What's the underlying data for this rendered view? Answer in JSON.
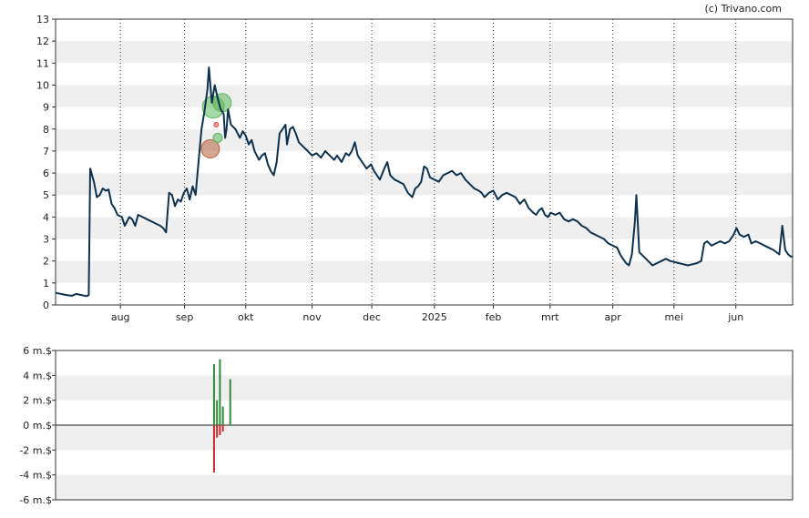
{
  "credit": "(c) Trivano.com",
  "chart_data": [
    {
      "type": "line",
      "title": "",
      "ylim": [
        0,
        13
      ],
      "y_ticks": [
        "0",
        "1",
        "2",
        "3",
        "4",
        "5",
        "6",
        "7",
        "8",
        "9",
        "10",
        "11",
        "12",
        "13"
      ],
      "x_ticks": [
        {
          "label": "aug",
          "t": 0.088
        },
        {
          "label": "sep",
          "t": 0.175
        },
        {
          "label": "okt",
          "t": 0.258
        },
        {
          "label": "nov",
          "t": 0.348
        },
        {
          "label": "dec",
          "t": 0.429
        },
        {
          "label": "2025",
          "t": 0.514
        },
        {
          "label": "feb",
          "t": 0.594
        },
        {
          "label": "mrt",
          "t": 0.671
        },
        {
          "label": "apr",
          "t": 0.756
        },
        {
          "label": "mei",
          "t": 0.839
        },
        {
          "label": "jun",
          "t": 0.923
        }
      ],
      "grid": "horizontal bands, dotted vertical month lines",
      "line_color": "#0d3250",
      "series": [
        {
          "values": [
            [
              0.0,
              0.55
            ],
            [
              0.015,
              0.45
            ],
            [
              0.022,
              0.42
            ],
            [
              0.028,
              0.5
            ],
            [
              0.035,
              0.45
            ],
            [
              0.042,
              0.4
            ],
            [
              0.045,
              0.45
            ],
            [
              0.047,
              6.2
            ],
            [
              0.052,
              5.6
            ],
            [
              0.056,
              4.9
            ],
            [
              0.06,
              5.0
            ],
            [
              0.064,
              5.3
            ],
            [
              0.068,
              5.2
            ],
            [
              0.072,
              5.25
            ],
            [
              0.076,
              4.6
            ],
            [
              0.08,
              4.4
            ],
            [
              0.084,
              4.1
            ],
            [
              0.09,
              4.0
            ],
            [
              0.094,
              3.6
            ],
            [
              0.1,
              4.0
            ],
            [
              0.104,
              3.9
            ],
            [
              0.108,
              3.6
            ],
            [
              0.112,
              4.1
            ],
            [
              0.118,
              4.0
            ],
            [
              0.124,
              3.9
            ],
            [
              0.13,
              3.8
            ],
            [
              0.136,
              3.7
            ],
            [
              0.142,
              3.6
            ],
            [
              0.146,
              3.5
            ],
            [
              0.15,
              3.3
            ],
            [
              0.154,
              5.1
            ],
            [
              0.158,
              5.0
            ],
            [
              0.162,
              4.5
            ],
            [
              0.166,
              4.8
            ],
            [
              0.17,
              4.7
            ],
            [
              0.174,
              5.1
            ],
            [
              0.178,
              5.3
            ],
            [
              0.182,
              4.8
            ],
            [
              0.186,
              5.4
            ],
            [
              0.19,
              5.0
            ],
            [
              0.194,
              6.5
            ],
            [
              0.198,
              8.0
            ],
            [
              0.202,
              8.8
            ],
            [
              0.206,
              9.8
            ],
            [
              0.208,
              10.8
            ],
            [
              0.212,
              9.2
            ],
            [
              0.216,
              10.0
            ],
            [
              0.22,
              9.4
            ],
            [
              0.224,
              8.9
            ],
            [
              0.228,
              8.7
            ],
            [
              0.23,
              7.6
            ],
            [
              0.232,
              8.0
            ],
            [
              0.234,
              8.9
            ],
            [
              0.238,
              8.2
            ],
            [
              0.244,
              8.0
            ],
            [
              0.25,
              7.6
            ],
            [
              0.254,
              7.9
            ],
            [
              0.258,
              7.7
            ],
            [
              0.262,
              7.3
            ],
            [
              0.266,
              7.5
            ],
            [
              0.27,
              7.0
            ],
            [
              0.276,
              6.6
            ],
            [
              0.28,
              6.8
            ],
            [
              0.284,
              6.9
            ],
            [
              0.288,
              6.4
            ],
            [
              0.292,
              6.1
            ],
            [
              0.296,
              5.9
            ],
            [
              0.3,
              6.5
            ],
            [
              0.304,
              7.8
            ],
            [
              0.308,
              8.0
            ],
            [
              0.312,
              8.2
            ],
            [
              0.314,
              7.3
            ],
            [
              0.318,
              8.0
            ],
            [
              0.322,
              8.1
            ],
            [
              0.326,
              7.8
            ],
            [
              0.33,
              7.4
            ],
            [
              0.336,
              7.2
            ],
            [
              0.342,
              7.0
            ],
            [
              0.348,
              6.8
            ],
            [
              0.354,
              6.9
            ],
            [
              0.36,
              6.7
            ],
            [
              0.366,
              7.0
            ],
            [
              0.372,
              6.8
            ],
            [
              0.378,
              6.6
            ],
            [
              0.382,
              6.8
            ],
            [
              0.388,
              6.5
            ],
            [
              0.394,
              6.9
            ],
            [
              0.398,
              6.8
            ],
            [
              0.402,
              7.0
            ],
            [
              0.406,
              7.4
            ],
            [
              0.41,
              6.8
            ],
            [
              0.416,
              6.5
            ],
            [
              0.422,
              6.2
            ],
            [
              0.428,
              6.4
            ],
            [
              0.432,
              6.1
            ],
            [
              0.436,
              5.9
            ],
            [
              0.44,
              5.7
            ],
            [
              0.446,
              6.2
            ],
            [
              0.45,
              6.5
            ],
            [
              0.454,
              5.9
            ],
            [
              0.46,
              5.7
            ],
            [
              0.466,
              5.6
            ],
            [
              0.472,
              5.5
            ],
            [
              0.478,
              5.1
            ],
            [
              0.484,
              4.9
            ],
            [
              0.488,
              5.3
            ],
            [
              0.492,
              5.4
            ],
            [
              0.496,
              5.6
            ],
            [
              0.5,
              6.3
            ],
            [
              0.504,
              6.2
            ],
            [
              0.508,
              5.8
            ],
            [
              0.514,
              5.7
            ],
            [
              0.52,
              5.6
            ],
            [
              0.526,
              5.9
            ],
            [
              0.532,
              6.0
            ],
            [
              0.538,
              6.1
            ],
            [
              0.544,
              5.9
            ],
            [
              0.55,
              6.0
            ],
            [
              0.556,
              5.7
            ],
            [
              0.562,
              5.5
            ],
            [
              0.568,
              5.3
            ],
            [
              0.574,
              5.2
            ],
            [
              0.578,
              5.1
            ],
            [
              0.582,
              4.9
            ],
            [
              0.588,
              5.1
            ],
            [
              0.594,
              5.2
            ],
            [
              0.6,
              4.8
            ],
            [
              0.606,
              5.0
            ],
            [
              0.612,
              5.1
            ],
            [
              0.618,
              5.0
            ],
            [
              0.624,
              4.9
            ],
            [
              0.63,
              4.6
            ],
            [
              0.636,
              4.8
            ],
            [
              0.642,
              4.4
            ],
            [
              0.648,
              4.2
            ],
            [
              0.652,
              4.1
            ],
            [
              0.656,
              4.3
            ],
            [
              0.66,
              4.4
            ],
            [
              0.664,
              4.1
            ],
            [
              0.668,
              4.0
            ],
            [
              0.672,
              4.2
            ],
            [
              0.678,
              4.1
            ],
            [
              0.684,
              4.2
            ],
            [
              0.69,
              3.9
            ],
            [
              0.696,
              3.8
            ],
            [
              0.702,
              3.9
            ],
            [
              0.708,
              3.8
            ],
            [
              0.714,
              3.6
            ],
            [
              0.72,
              3.5
            ],
            [
              0.726,
              3.3
            ],
            [
              0.732,
              3.2
            ],
            [
              0.738,
              3.1
            ],
            [
              0.744,
              3.0
            ],
            [
              0.75,
              2.8
            ],
            [
              0.756,
              2.7
            ],
            [
              0.762,
              2.6
            ],
            [
              0.766,
              2.3
            ],
            [
              0.77,
              2.1
            ],
            [
              0.774,
              1.9
            ],
            [
              0.778,
              1.8
            ],
            [
              0.782,
              2.3
            ],
            [
              0.786,
              3.8
            ],
            [
              0.788,
              5.0
            ],
            [
              0.792,
              2.4
            ],
            [
              0.798,
              2.2
            ],
            [
              0.804,
              2.0
            ],
            [
              0.81,
              1.8
            ],
            [
              0.816,
              1.9
            ],
            [
              0.822,
              2.0
            ],
            [
              0.828,
              2.1
            ],
            [
              0.834,
              2.0
            ],
            [
              0.84,
              1.95
            ],
            [
              0.846,
              1.9
            ],
            [
              0.852,
              1.85
            ],
            [
              0.858,
              1.8
            ],
            [
              0.864,
              1.85
            ],
            [
              0.87,
              1.9
            ],
            [
              0.876,
              2.0
            ],
            [
              0.88,
              2.8
            ],
            [
              0.884,
              2.9
            ],
            [
              0.89,
              2.7
            ],
            [
              0.896,
              2.8
            ],
            [
              0.902,
              2.9
            ],
            [
              0.908,
              2.8
            ],
            [
              0.914,
              2.9
            ],
            [
              0.92,
              3.2
            ],
            [
              0.924,
              3.5
            ],
            [
              0.928,
              3.2
            ],
            [
              0.934,
              3.1
            ],
            [
              0.94,
              3.2
            ],
            [
              0.944,
              2.8
            ],
            [
              0.95,
              2.9
            ],
            [
              0.956,
              2.8
            ],
            [
              0.962,
              2.7
            ],
            [
              0.968,
              2.6
            ],
            [
              0.974,
              2.5
            ],
            [
              0.978,
              2.4
            ],
            [
              0.982,
              2.3
            ],
            [
              0.986,
              3.6
            ],
            [
              0.99,
              2.5
            ],
            [
              0.994,
              2.3
            ],
            [
              0.998,
              2.2
            ],
            [
              1.0,
              2.2
            ]
          ]
        }
      ],
      "annotations": [
        {
          "t": 0.214,
          "y": 9.0,
          "size": "large",
          "color": "#5bb85b"
        },
        {
          "t": 0.226,
          "y": 9.2,
          "size": "medium",
          "color": "#5bb85b"
        },
        {
          "t": 0.21,
          "y": 7.1,
          "size": "medium",
          "color": "#b5603a"
        },
        {
          "t": 0.22,
          "y": 7.6,
          "size": "small",
          "color": "#5bb85b"
        },
        {
          "t": 0.218,
          "y": 8.2,
          "size": "tiny",
          "color": "#e0463c"
        }
      ]
    },
    {
      "type": "bar",
      "title": "",
      "ylim": [
        -6,
        6
      ],
      "y_ticks": [
        "-6 m.$",
        "-4 m.$",
        "-2 m.$",
        "0 m.$",
        "2 m.$",
        "4 m.$",
        "6 m.$"
      ],
      "bars": [
        {
          "t": 0.215,
          "value": -3.8,
          "color": "#cc2a2a"
        },
        {
          "t": 0.215,
          "value": 4.9,
          "color": "#2e8b3a"
        },
        {
          "t": 0.219,
          "value": 2.0,
          "color": "#2e8b3a"
        },
        {
          "t": 0.219,
          "value": -1.0,
          "color": "#cc2a2a"
        },
        {
          "t": 0.223,
          "value": 5.3,
          "color": "#2e8b3a"
        },
        {
          "t": 0.223,
          "value": -0.8,
          "color": "#cc2a2a"
        },
        {
          "t": 0.227,
          "value": 1.5,
          "color": "#2e8b3a"
        },
        {
          "t": 0.227,
          "value": -0.5,
          "color": "#cc2a2a"
        },
        {
          "t": 0.237,
          "value": 3.7,
          "color": "#2e8b3a"
        }
      ]
    }
  ]
}
